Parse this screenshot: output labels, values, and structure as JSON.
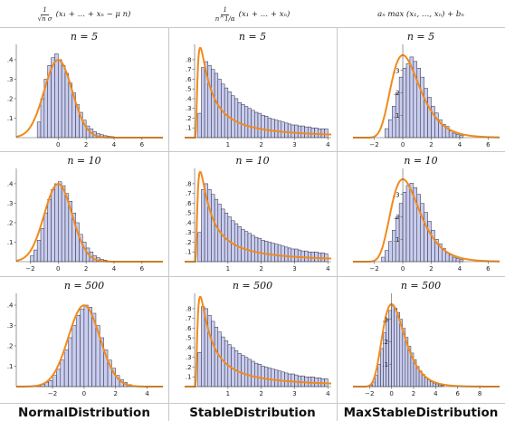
{
  "columns": [
    {
      "header_num": "1",
      "header_den": "√n σ",
      "header_rest": "(x₁ + … + xₙ − μ n)",
      "name": "NormalDistribution"
    },
    {
      "header_num": "1",
      "header_den": "n^1/α",
      "header_rest": "(x₁ + … + xₙ)",
      "name": "StableDistribution"
    },
    {
      "header_num": "",
      "header_den": "",
      "header_rest": "aₙ max (x₁, …, xₙ) + bₙ",
      "name": "MaxStableDistribution"
    }
  ],
  "colors": {
    "bar_fill": "#c9cdf0",
    "bar_stroke": "#2a2a3a",
    "curve": "#f28a1a"
  },
  "chart_data": [
    {
      "type": "bar",
      "title": "n = 5",
      "column": "NormalDistribution",
      "xticks": [
        0,
        2,
        4,
        6
      ],
      "yticks": [
        0.1,
        0.2,
        0.3,
        0.4
      ],
      "xlim": [
        -3,
        7.5
      ],
      "ylim": [
        0,
        0.46
      ],
      "bins_x": [
        -1.5,
        -1.25,
        -1.0,
        -0.75,
        -0.5,
        -0.25,
        0.0,
        0.25,
        0.5,
        0.75,
        1.0,
        1.25,
        1.5,
        1.75,
        2.0,
        2.25,
        2.5,
        2.75,
        3.0,
        3.25,
        3.5,
        3.75,
        4.0,
        4.25
      ],
      "values": [
        0.08,
        0.2,
        0.3,
        0.37,
        0.41,
        0.43,
        0.4,
        0.37,
        0.33,
        0.28,
        0.23,
        0.17,
        0.13,
        0.09,
        0.06,
        0.045,
        0.03,
        0.02,
        0.015,
        0.01,
        0.007,
        0.005,
        0.003,
        0.002
      ],
      "curve": {
        "kind": "normal",
        "mu": 0,
        "sigma": 1
      }
    },
    {
      "type": "bar",
      "title": "n = 5",
      "column": "StableDistribution",
      "xticks": [
        1,
        2,
        3,
        4
      ],
      "yticks": [
        0.1,
        0.2,
        0.3,
        0.4,
        0.5,
        0.6,
        0.7,
        0.8
      ],
      "xlim": [
        -0.3,
        4.1
      ],
      "ylim": [
        0,
        0.92
      ],
      "bins_x": [
        0.1,
        0.2,
        0.3,
        0.4,
        0.5,
        0.6,
        0.7,
        0.8,
        0.9,
        1.0,
        1.1,
        1.2,
        1.3,
        1.4,
        1.5,
        1.6,
        1.7,
        1.8,
        1.9,
        2.0,
        2.1,
        2.2,
        2.3,
        2.4,
        2.5,
        2.6,
        2.7,
        2.8,
        2.9,
        3.0,
        3.1,
        3.2,
        3.3,
        3.4,
        3.5,
        3.6,
        3.7,
        3.8,
        3.9
      ],
      "values": [
        0.25,
        0.72,
        0.78,
        0.74,
        0.7,
        0.66,
        0.6,
        0.55,
        0.51,
        0.47,
        0.43,
        0.4,
        0.36,
        0.34,
        0.32,
        0.3,
        0.28,
        0.26,
        0.25,
        0.23,
        0.22,
        0.2,
        0.19,
        0.18,
        0.17,
        0.16,
        0.15,
        0.14,
        0.13,
        0.13,
        0.12,
        0.12,
        0.11,
        0.11,
        0.1,
        0.1,
        0.09,
        0.09,
        0.09
      ],
      "curve": {
        "kind": "levy",
        "c": 0.5
      }
    },
    {
      "type": "bar",
      "title": "n = 5",
      "column": "MaxStableDistribution",
      "xticks": [
        -2,
        0,
        2,
        4,
        6
      ],
      "yticks": [
        0.1,
        0.2,
        0.3
      ],
      "xlim": [
        -3.5,
        6.8
      ],
      "ylim": [
        0,
        0.4
      ],
      "bins_x": [
        -1.25,
        -1.0,
        -0.75,
        -0.5,
        -0.25,
        0.0,
        0.25,
        0.5,
        0.75,
        1.0,
        1.25,
        1.5,
        1.75,
        2.0,
        2.25,
        2.5,
        2.75,
        3.0,
        3.25,
        3.5,
        3.75,
        4.0
      ],
      "values": [
        0.04,
        0.08,
        0.14,
        0.2,
        0.27,
        0.31,
        0.33,
        0.36,
        0.34,
        0.31,
        0.27,
        0.22,
        0.18,
        0.14,
        0.11,
        0.08,
        0.06,
        0.05,
        0.03,
        0.02,
        0.015,
        0.01
      ],
      "curve": {
        "kind": "gumbel",
        "mu": 0,
        "beta": 1
      }
    },
    {
      "type": "bar",
      "title": "n = 10",
      "column": "NormalDistribution",
      "xticks": [
        -2,
        0,
        2,
        4,
        6
      ],
      "yticks": [
        0.1,
        0.2,
        0.3,
        0.4
      ],
      "xlim": [
        -3,
        7.5
      ],
      "ylim": [
        0,
        0.46
      ],
      "bins_x": [
        -2.0,
        -1.75,
        -1.5,
        -1.25,
        -1.0,
        -0.75,
        -0.5,
        -0.25,
        0.0,
        0.25,
        0.5,
        0.75,
        1.0,
        1.25,
        1.5,
        1.75,
        2.0,
        2.25,
        2.5,
        2.75,
        3.0,
        3.25
      ],
      "values": [
        0.03,
        0.06,
        0.11,
        0.17,
        0.25,
        0.32,
        0.37,
        0.4,
        0.41,
        0.39,
        0.35,
        0.31,
        0.25,
        0.2,
        0.14,
        0.1,
        0.07,
        0.05,
        0.03,
        0.02,
        0.012,
        0.008
      ],
      "curve": {
        "kind": "normal",
        "mu": 0,
        "sigma": 1
      }
    },
    {
      "type": "bar",
      "title": "n = 10",
      "column": "StableDistribution",
      "xticks": [
        1,
        2,
        3,
        4
      ],
      "yticks": [
        0.1,
        0.2,
        0.3,
        0.4,
        0.5,
        0.6,
        0.7,
        0.8
      ],
      "xlim": [
        -0.3,
        4.1
      ],
      "ylim": [
        0,
        0.92
      ],
      "bins_x": [
        0.1,
        0.2,
        0.3,
        0.4,
        0.5,
        0.6,
        0.7,
        0.8,
        0.9,
        1.0,
        1.1,
        1.2,
        1.3,
        1.4,
        1.5,
        1.6,
        1.7,
        1.8,
        1.9,
        2.0,
        2.1,
        2.2,
        2.3,
        2.4,
        2.5,
        2.6,
        2.7,
        2.8,
        2.9,
        3.0,
        3.1,
        3.2,
        3.3,
        3.4,
        3.5,
        3.6,
        3.7,
        3.8,
        3.9
      ],
      "values": [
        0.3,
        0.74,
        0.8,
        0.74,
        0.69,
        0.64,
        0.59,
        0.54,
        0.5,
        0.46,
        0.42,
        0.39,
        0.36,
        0.33,
        0.31,
        0.29,
        0.27,
        0.25,
        0.24,
        0.22,
        0.21,
        0.2,
        0.19,
        0.18,
        0.17,
        0.16,
        0.15,
        0.14,
        0.13,
        0.13,
        0.12,
        0.11,
        0.11,
        0.1,
        0.1,
        0.1,
        0.09,
        0.09,
        0.08
      ],
      "curve": {
        "kind": "levy",
        "c": 0.5
      }
    },
    {
      "type": "bar",
      "title": "n = 10",
      "column": "MaxStableDistribution",
      "xticks": [
        -2,
        0,
        2,
        4,
        6
      ],
      "yticks": [
        0.1,
        0.2,
        0.3
      ],
      "xlim": [
        -3.5,
        6.8
      ],
      "ylim": [
        0,
        0.4
      ],
      "bins_x": [
        -1.5,
        -1.25,
        -1.0,
        -0.75,
        -0.5,
        -0.25,
        0.0,
        0.25,
        0.5,
        0.75,
        1.0,
        1.25,
        1.5,
        1.75,
        2.0,
        2.25,
        2.5,
        2.75,
        3.0,
        3.25,
        3.5,
        3.75,
        4.0
      ],
      "values": [
        0.02,
        0.05,
        0.09,
        0.14,
        0.2,
        0.26,
        0.31,
        0.34,
        0.35,
        0.33,
        0.3,
        0.26,
        0.22,
        0.18,
        0.14,
        0.1,
        0.08,
        0.06,
        0.04,
        0.03,
        0.02,
        0.015,
        0.01
      ],
      "curve": {
        "kind": "gumbel",
        "mu": 0,
        "beta": 1
      }
    },
    {
      "type": "bar",
      "title": "n = 500",
      "column": "NormalDistribution",
      "xticks": [
        -2,
        0,
        2,
        4
      ],
      "yticks": [
        0.1,
        0.2,
        0.3,
        0.4
      ],
      "xlim": [
        -4.3,
        5
      ],
      "ylim": [
        0,
        0.44
      ],
      "bins_x": [
        -3.0,
        -2.75,
        -2.5,
        -2.25,
        -2.0,
        -1.75,
        -1.5,
        -1.25,
        -1.0,
        -0.75,
        -0.5,
        -0.25,
        0.0,
        0.25,
        0.5,
        0.75,
        1.0,
        1.25,
        1.5,
        1.75,
        2.0,
        2.25,
        2.5,
        2.75,
        3.0
      ],
      "values": [
        0.005,
        0.01,
        0.02,
        0.03,
        0.055,
        0.085,
        0.13,
        0.18,
        0.24,
        0.3,
        0.35,
        0.38,
        0.4,
        0.39,
        0.36,
        0.3,
        0.24,
        0.18,
        0.13,
        0.09,
        0.055,
        0.035,
        0.02,
        0.01,
        0.005
      ],
      "curve": {
        "kind": "normal",
        "mu": 0,
        "sigma": 1
      }
    },
    {
      "type": "bar",
      "title": "n = 500",
      "column": "StableDistribution",
      "xticks": [
        1,
        2,
        3,
        4
      ],
      "yticks": [
        0.1,
        0.2,
        0.3,
        0.4,
        0.5,
        0.6,
        0.7,
        0.8
      ],
      "xlim": [
        -0.3,
        4.1
      ],
      "ylim": [
        0,
        0.92
      ],
      "bins_x": [
        0.1,
        0.2,
        0.3,
        0.4,
        0.5,
        0.6,
        0.7,
        0.8,
        0.9,
        1.0,
        1.1,
        1.2,
        1.3,
        1.4,
        1.5,
        1.6,
        1.7,
        1.8,
        1.9,
        2.0,
        2.1,
        2.2,
        2.3,
        2.4,
        2.5,
        2.6,
        2.7,
        2.8,
        2.9,
        3.0,
        3.1,
        3.2,
        3.3,
        3.4,
        3.5,
        3.6,
        3.7,
        3.8,
        3.9
      ],
      "values": [
        0.35,
        0.82,
        0.8,
        0.73,
        0.67,
        0.61,
        0.56,
        0.51,
        0.47,
        0.43,
        0.4,
        0.37,
        0.34,
        0.32,
        0.3,
        0.28,
        0.26,
        0.24,
        0.23,
        0.21,
        0.2,
        0.19,
        0.18,
        0.17,
        0.16,
        0.15,
        0.14,
        0.13,
        0.13,
        0.12,
        0.11,
        0.11,
        0.1,
        0.1,
        0.1,
        0.09,
        0.09,
        0.08,
        0.08
      ],
      "curve": {
        "kind": "levy",
        "c": 0.5
      }
    },
    {
      "type": "bar",
      "title": "n = 500",
      "column": "MaxStableDistribution",
      "xticks": [
        -2,
        0,
        2,
        4,
        6,
        8
      ],
      "yticks": [
        0.1,
        0.2,
        0.3
      ],
      "xlim": [
        -3.5,
        9.8
      ],
      "ylim": [
        0,
        0.4
      ],
      "bins_x": [
        -2.0,
        -1.75,
        -1.5,
        -1.25,
        -1.0,
        -0.75,
        -0.5,
        -0.25,
        0.0,
        0.25,
        0.5,
        0.75,
        1.0,
        1.25,
        1.5,
        1.75,
        2.0,
        2.25,
        2.5,
        2.75,
        3.0,
        3.25,
        3.5,
        3.75,
        4.0,
        4.25,
        4.5
      ],
      "values": [
        0.005,
        0.02,
        0.05,
        0.1,
        0.17,
        0.24,
        0.3,
        0.34,
        0.36,
        0.35,
        0.33,
        0.3,
        0.26,
        0.22,
        0.18,
        0.15,
        0.12,
        0.09,
        0.07,
        0.055,
        0.04,
        0.03,
        0.022,
        0.016,
        0.012,
        0.008,
        0.005
      ],
      "curve": {
        "kind": "gumbel",
        "mu": 0,
        "beta": 1
      }
    }
  ]
}
